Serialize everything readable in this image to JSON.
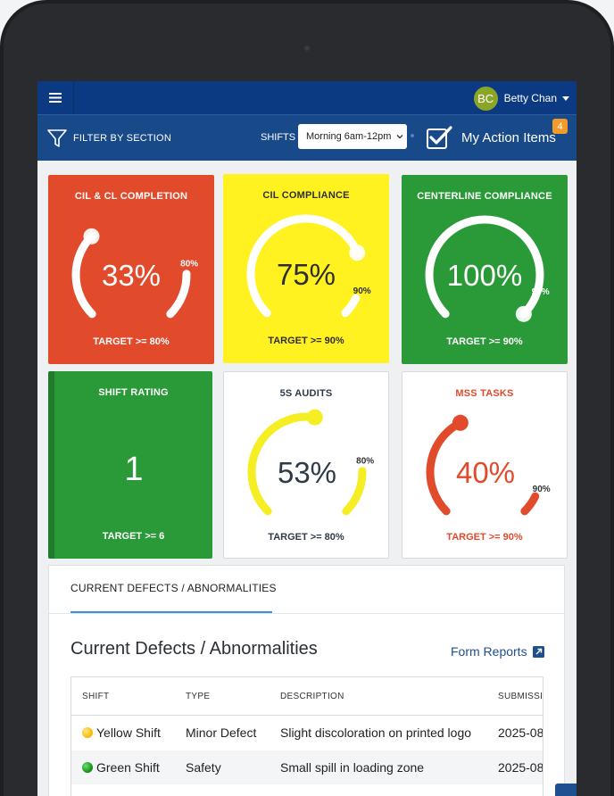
{
  "header": {
    "user_initials": "BC",
    "user_name": "Betty Chan",
    "avatar_color": "#8ba626"
  },
  "filterbar": {
    "filter_label": "FILTER BY SECTION",
    "shifts_label": "SHIFTS",
    "shift_selected": "Morning 6am-12pm",
    "action_items_label": "My Action Items",
    "action_items_count": "4"
  },
  "cards": [
    {
      "title": "CIL & CL COMPLETION",
      "value": "33%",
      "target_marker": "80%",
      "target": "TARGET >= 80%",
      "percent": 33,
      "target_percent": 80,
      "bg": "#e24a2c",
      "fg": "#ffffff",
      "arc": "#ffffff",
      "gauge": true
    },
    {
      "title": "CIL COMPLIANCE",
      "value": "75%",
      "target_marker": "90%",
      "target": "TARGET >= 90%",
      "percent": 75,
      "target_percent": 90,
      "bg": "#fff220",
      "fg": "#2f2f2f",
      "arc": "#ffffff",
      "gauge": true
    },
    {
      "title": "CENTERLINE COMPLIANCE",
      "value": "100%",
      "target_marker": "90%",
      "target": "TARGET >= 90%",
      "percent": 100,
      "target_percent": 90,
      "bg": "#2a9a38",
      "fg": "#ffffff",
      "arc": "#ffffff",
      "gauge": true
    },
    {
      "title": "SHIFT RATING",
      "value": "1",
      "target": "TARGET >= 6",
      "bg": "#2a9a38",
      "fg": "#ffffff",
      "gauge": false
    },
    {
      "title": "5S AUDITS",
      "value": "53%",
      "target_marker": "80%",
      "target": "TARGET >= 80%",
      "percent": 53,
      "target_percent": 80,
      "bg": "#ffffff",
      "fg": "#2f3a48",
      "arc": "#f4ee22",
      "gauge": true
    },
    {
      "title": "MSS TASKS",
      "value": "40%",
      "target_marker": "90%",
      "target": "TARGET >= 90%",
      "percent": 40,
      "target_percent": 90,
      "bg": "#ffffff",
      "fg": "#e24a2c",
      "arc": "#e24a2c",
      "gauge": true
    }
  ],
  "defects": {
    "tab_label": "CURRENT DEFECTS / ABNORMALITIES",
    "title": "Current Defects / Abnormalities",
    "form_reports_label": "Form Reports",
    "columns": [
      "SHIFT",
      "TYPE",
      "DESCRIPTION",
      "SUBMISSI"
    ],
    "rows": [
      {
        "shift": "Yellow Shift",
        "shift_color": "#f5b800",
        "type": "Minor Defect",
        "description": "Slight discoloration on printed logo",
        "submitted": "2025-08"
      },
      {
        "shift": "Green Shift",
        "shift_color": "#1d9c1d",
        "type": "Safety",
        "description": "Small spill in loading zone",
        "submitted": "2025-08"
      }
    ]
  }
}
